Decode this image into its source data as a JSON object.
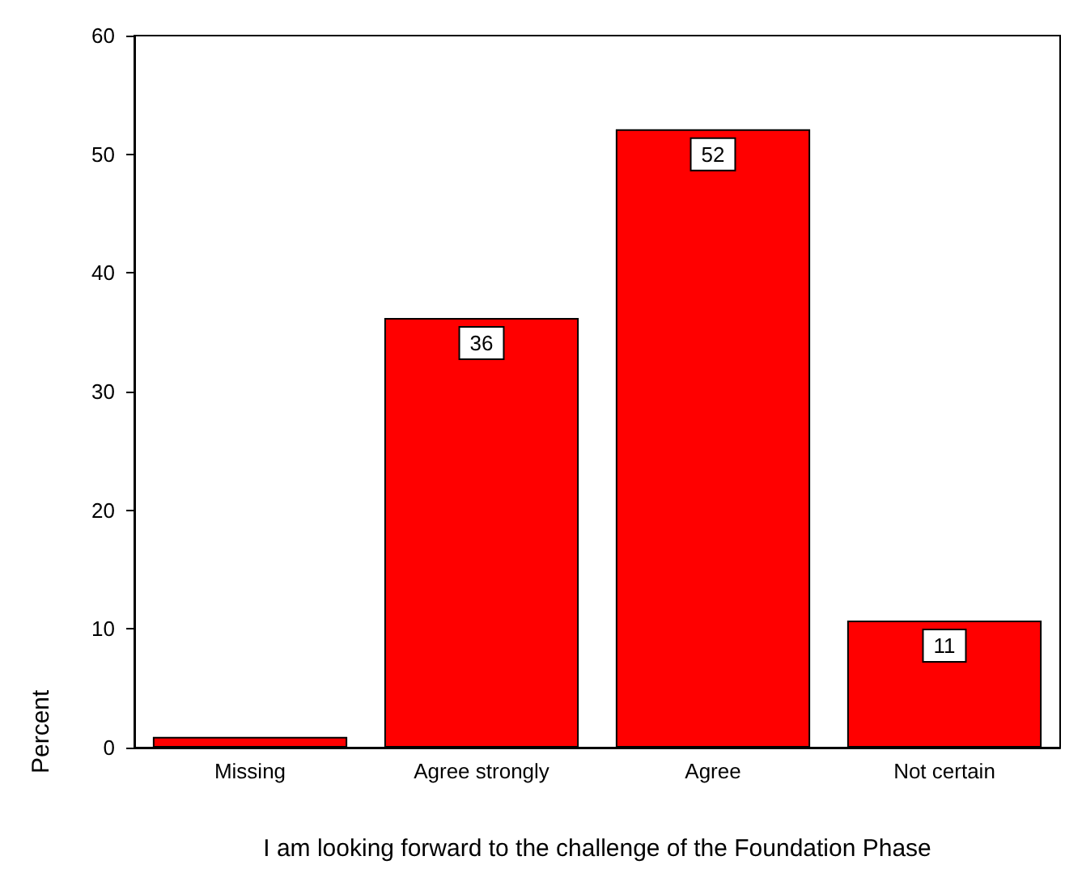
{
  "chart_data": {
    "type": "bar",
    "xlabel": "I am looking forward to the challenge of the Foundation Phase",
    "ylabel": "Percent",
    "categories": [
      "Missing",
      "Agree strongly",
      "Agree",
      "Not certain"
    ],
    "values": [
      0.9,
      36.2,
      52.1,
      10.7
    ],
    "value_labels": [
      null,
      "36",
      "52",
      "11"
    ],
    "color": "#ff0000",
    "ylim": [
      0,
      60
    ],
    "yticks": [
      0,
      10,
      20,
      30,
      40,
      50,
      60
    ]
  }
}
